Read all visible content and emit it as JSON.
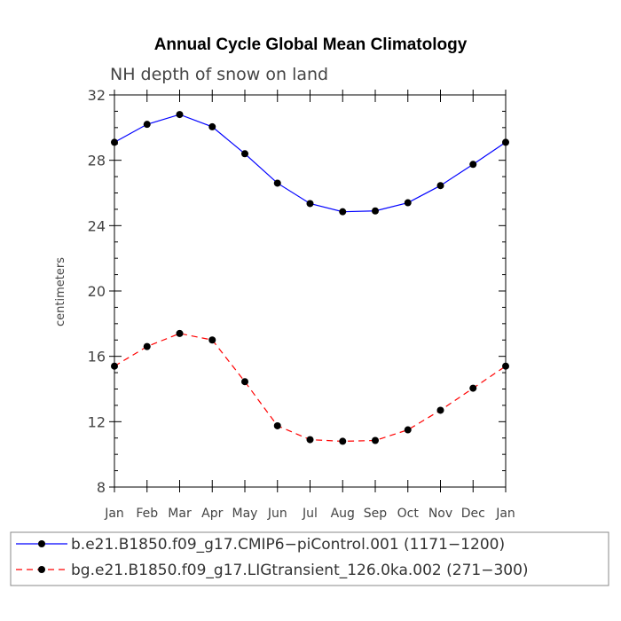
{
  "chart_data": {
    "type": "line",
    "title": "Annual Cycle Global Mean Climatology",
    "subtitle": "NH depth of snow on land",
    "xlabel": "",
    "ylabel": "centimeters",
    "ylim": [
      8,
      32
    ],
    "yticks": [
      8,
      12,
      16,
      20,
      24,
      28,
      32
    ],
    "categories": [
      "Jan",
      "Feb",
      "Mar",
      "Apr",
      "May",
      "Jun",
      "Jul",
      "Aug",
      "Sep",
      "Oct",
      "Nov",
      "Dec",
      "Jan"
    ],
    "grid": false,
    "legend_position": "bottom",
    "series": [
      {
        "name": "b.e21.B1850.f09_g17.CMIP6−piControl.001 (1171−1200)",
        "color": "#0000ff",
        "dash": "solid",
        "values": [
          29.1,
          30.2,
          30.8,
          30.05,
          28.4,
          26.6,
          25.35,
          24.85,
          24.9,
          25.4,
          26.45,
          27.75,
          29.1
        ]
      },
      {
        "name": "bg.e21.B1850.f09_g17.LIGtransient_126.0ka.002 (271−300)",
        "color": "#ff0000",
        "dash": "dashed",
        "values": [
          15.4,
          16.6,
          17.4,
          17.0,
          14.45,
          11.75,
          10.9,
          10.8,
          10.85,
          11.5,
          12.7,
          14.05,
          15.4
        ]
      }
    ]
  }
}
